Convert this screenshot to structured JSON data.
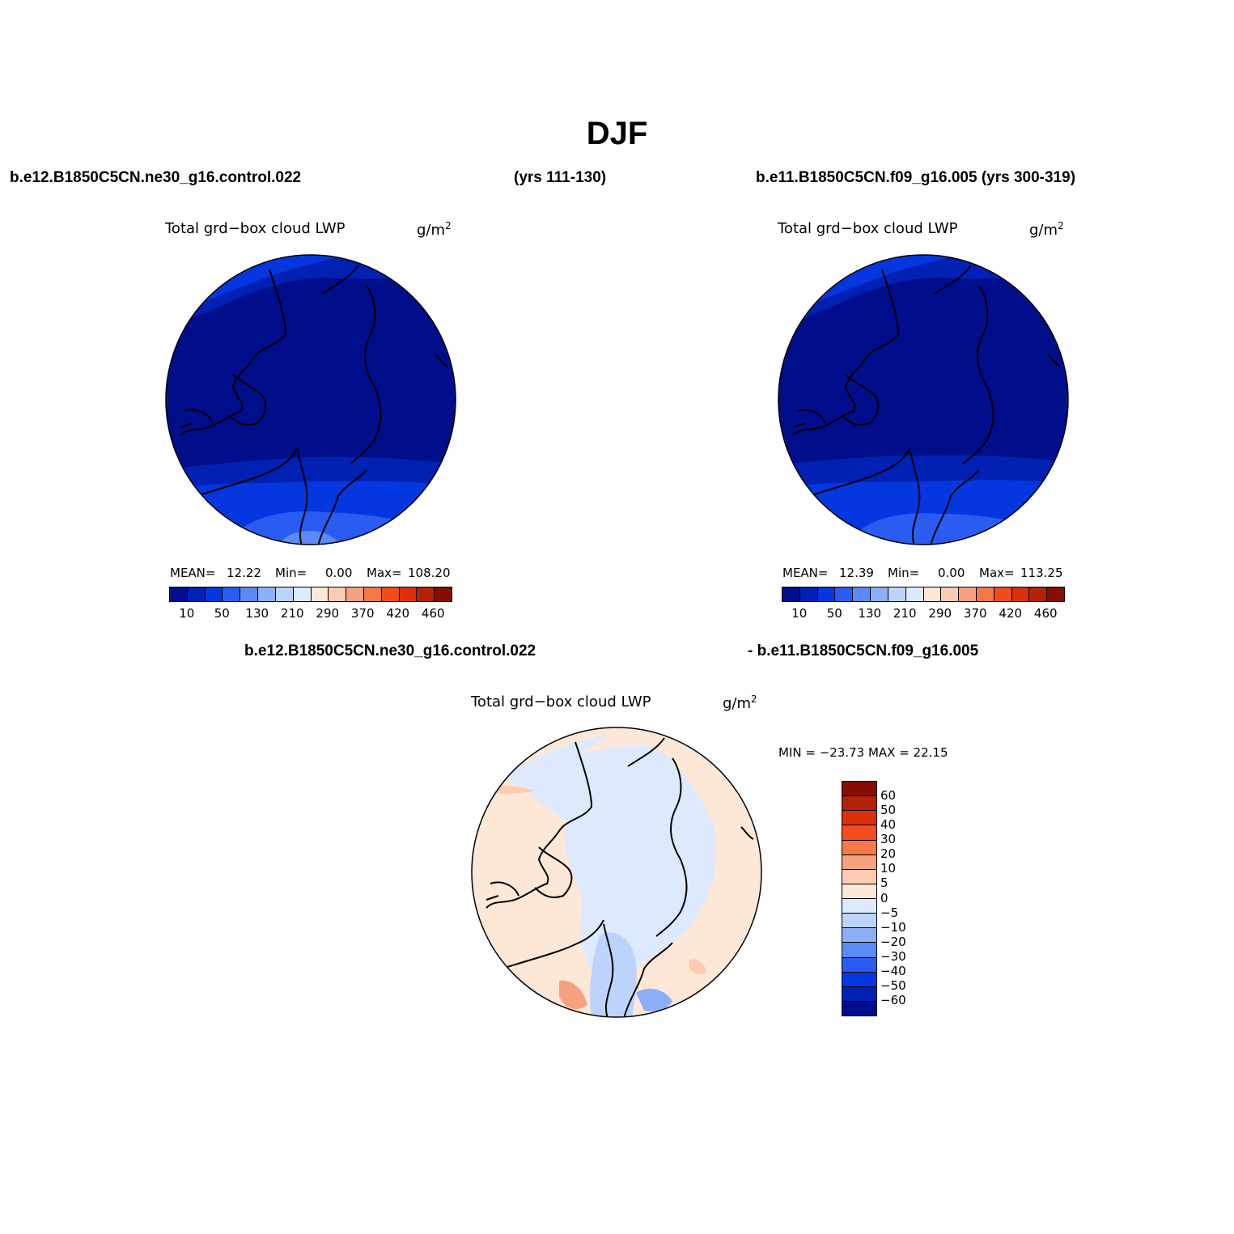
{
  "figure": {
    "title": "DJF",
    "top_left_case": "b.e12.B1850C5CN.ne30_g16.control.022",
    "top_left_years": "(yrs 111-130)",
    "top_right_case": "b.e11.B1850C5CN.f09_g16.005 (yrs 300-319)",
    "diff_case_a": "b.e12.B1850C5CN.ne30_g16.control.022",
    "diff_case_b": "- b.e11.B1850C5CN.f09_g16.005"
  },
  "panels": [
    {
      "variable": "Total grd−box cloud LWP",
      "units": "g/m",
      "units_exp": "2",
      "mean_label": "MEAN=",
      "mean": "12.22",
      "min_label": "Min=",
      "min": "0.00",
      "max_label": "Max=",
      "max": "108.20"
    },
    {
      "variable": "Total grd−box cloud LWP",
      "units": "g/m",
      "units_exp": "2",
      "mean_label": "MEAN=",
      "mean": "12.39",
      "min_label": "Min=",
      "min": "0.00",
      "max_label": "Max=",
      "max": "113.25"
    }
  ],
  "diff_panel": {
    "variable": "Total grd−box cloud LWP",
    "units": "g/m",
    "units_exp": "2",
    "minmax": "MIN = −23.73 MAX =  22.15"
  },
  "colorbar_abs": {
    "colors": [
      "#000e8c",
      "#0021b4",
      "#0437e0",
      "#2a5cf2",
      "#5a8af5",
      "#8cb0f8",
      "#bcd3fb",
      "#dde9fd",
      "#fde8d8",
      "#fccbb2",
      "#f6a27f",
      "#f47848",
      "#ef4d1c",
      "#dc3008",
      "#b52106",
      "#850d02"
    ],
    "ticks": [
      "10",
      "50",
      "130",
      "210",
      "290",
      "370",
      "420",
      "460"
    ]
  },
  "colorbar_diff": {
    "colors": [
      "#850d02",
      "#b52106",
      "#dc3008",
      "#f24f1c",
      "#f47848",
      "#f6a27f",
      "#fccbb2",
      "#fde8d8",
      "#dde9fd",
      "#bcd3fb",
      "#8cb0f8",
      "#5a8af5",
      "#2a5cf2",
      "#0437e0",
      "#0021b4",
      "#000e8c"
    ],
    "ticks": [
      "60",
      "50",
      "40",
      "30",
      "20",
      "10",
      "5",
      "0",
      "−5",
      "−10",
      "−20",
      "−30",
      "−40",
      "−50",
      "−60"
    ]
  }
}
